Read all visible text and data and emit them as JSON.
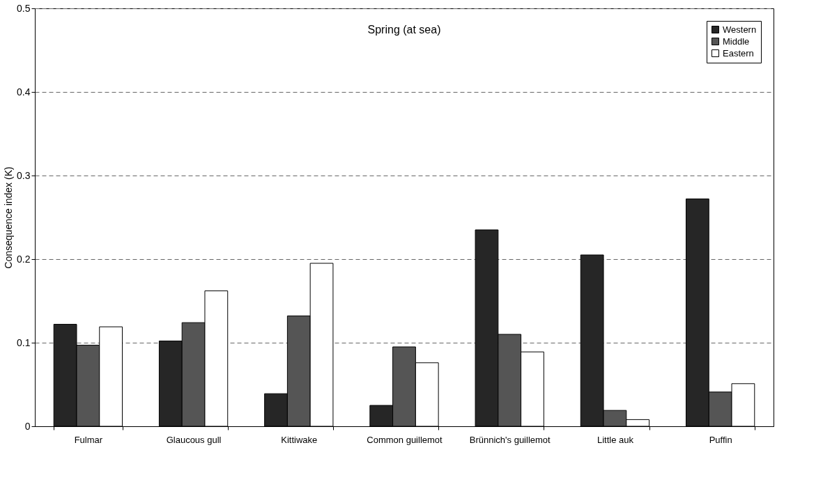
{
  "chart_data": {
    "type": "bar",
    "title": "Spring (at sea)",
    "ylabel": "Consequence index (K)",
    "categories": [
      "Fulmar",
      "Glaucous gull",
      "Kittiwake",
      "Common guillemot",
      "Brünnich's guillemot",
      "Little auk",
      "Puffin"
    ],
    "series": [
      {
        "name": "Western",
        "color": "#262626",
        "values": [
          0.122,
          0.102,
          0.039,
          0.025,
          0.235,
          0.205,
          0.272
        ]
      },
      {
        "name": "Middle",
        "color": "#555555",
        "values": [
          0.097,
          0.124,
          0.132,
          0.095,
          0.11,
          0.019,
          0.041
        ]
      },
      {
        "name": "Eastern",
        "color": "#ffffff",
        "values": [
          0.119,
          0.162,
          0.195,
          0.076,
          0.089,
          0.008,
          0.051
        ]
      }
    ],
    "ylim": [
      0,
      0.5
    ],
    "yticks": [
      0,
      0.1,
      0.2,
      0.3,
      0.4,
      0.5
    ],
    "grid": "y",
    "legend": "top right"
  }
}
